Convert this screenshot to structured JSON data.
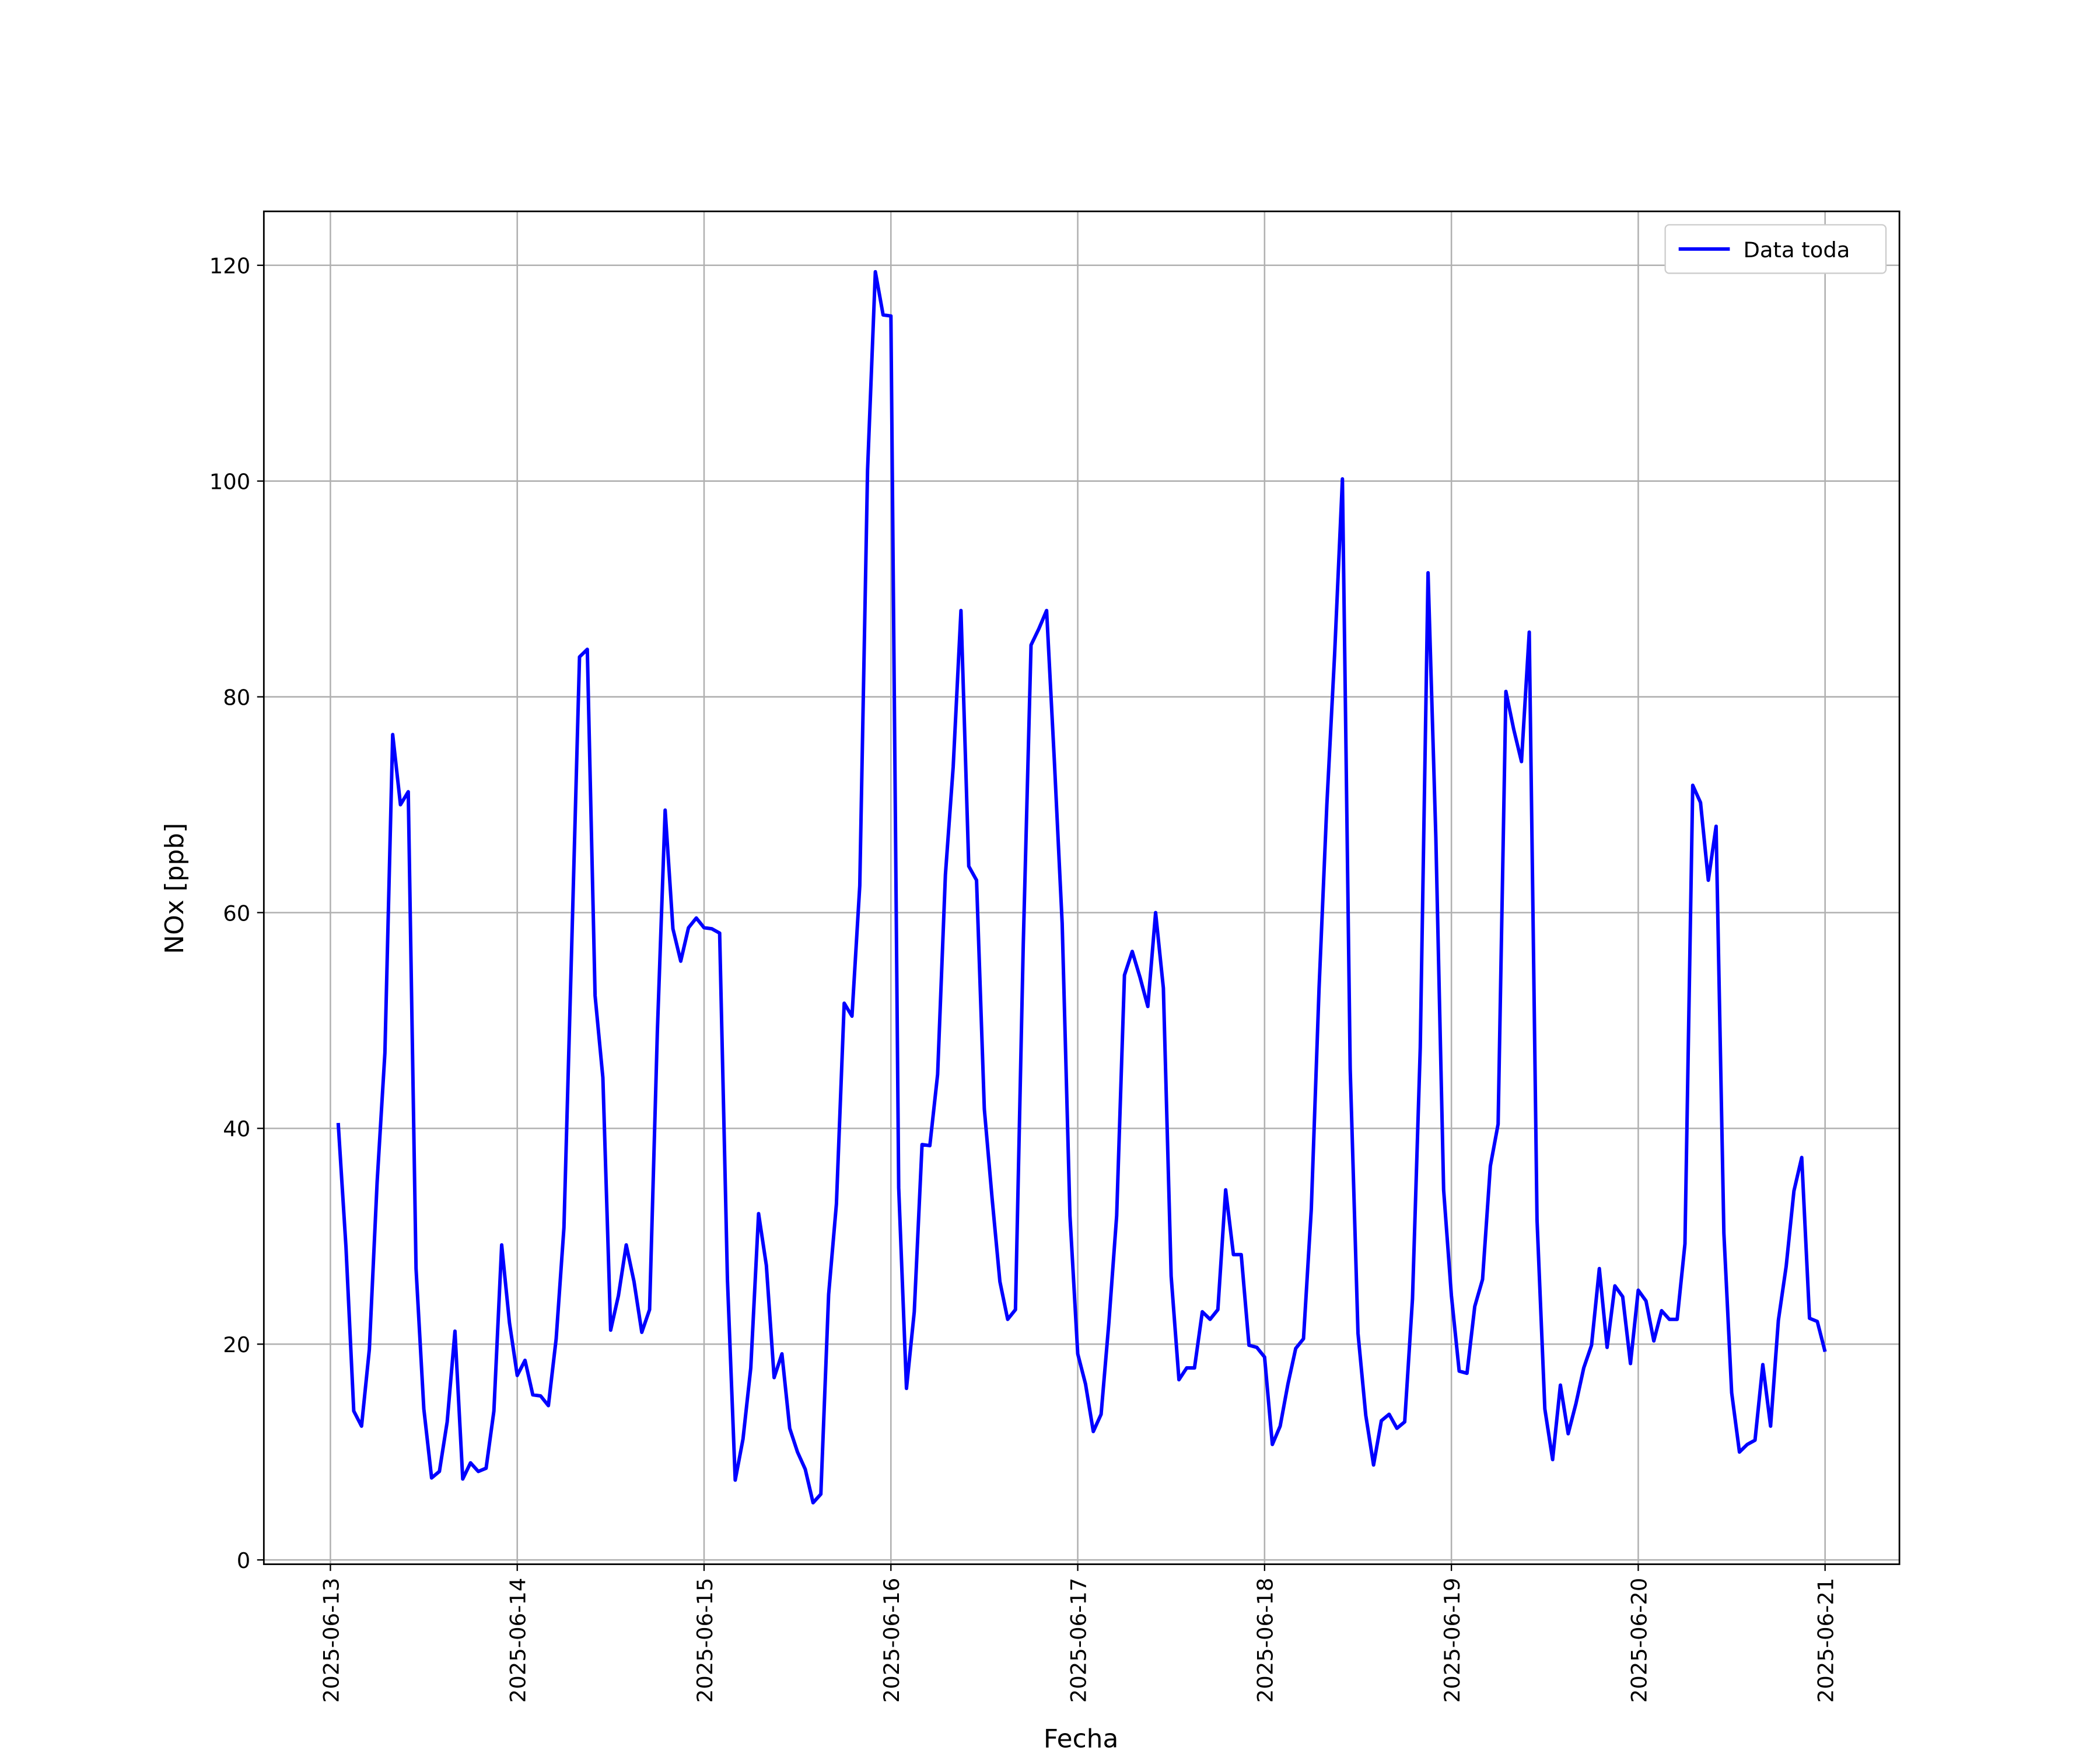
{
  "chart_data": {
    "type": "line",
    "xlabel": "Fecha",
    "ylabel": "NOx [ppb]",
    "x": [
      "2025-06-13 01:00",
      "2025-06-13 02:00",
      "2025-06-13 03:00",
      "2025-06-13 04:00",
      "2025-06-13 05:00",
      "2025-06-13 06:00",
      "2025-06-13 07:00",
      "2025-06-13 08:00",
      "2025-06-13 09:00",
      "2025-06-13 10:00",
      "2025-06-13 11:00",
      "2025-06-13 12:00",
      "2025-06-13 13:00",
      "2025-06-13 14:00",
      "2025-06-13 15:00",
      "2025-06-13 16:00",
      "2025-06-13 17:00",
      "2025-06-13 18:00",
      "2025-06-13 19:00",
      "2025-06-13 20:00",
      "2025-06-13 21:00",
      "2025-06-13 22:00",
      "2025-06-13 23:00",
      "2025-06-14 00:00",
      "2025-06-14 01:00",
      "2025-06-14 02:00",
      "2025-06-14 03:00",
      "2025-06-14 04:00",
      "2025-06-14 05:00",
      "2025-06-14 06:00",
      "2025-06-14 07:00",
      "2025-06-14 08:00",
      "2025-06-14 09:00",
      "2025-06-14 10:00",
      "2025-06-14 11:00",
      "2025-06-14 12:00",
      "2025-06-14 13:00",
      "2025-06-14 14:00",
      "2025-06-14 15:00",
      "2025-06-14 16:00",
      "2025-06-14 17:00",
      "2025-06-14 18:00",
      "2025-06-14 19:00",
      "2025-06-14 20:00",
      "2025-06-14 21:00",
      "2025-06-14 22:00",
      "2025-06-14 23:00",
      "2025-06-15 00:00",
      "2025-06-15 01:00",
      "2025-06-15 02:00",
      "2025-06-15 03:00",
      "2025-06-15 04:00",
      "2025-06-15 05:00",
      "2025-06-15 06:00",
      "2025-06-15 07:00",
      "2025-06-15 08:00",
      "2025-06-15 09:00",
      "2025-06-15 10:00",
      "2025-06-15 11:00",
      "2025-06-15 12:00",
      "2025-06-15 13:00",
      "2025-06-15 14:00",
      "2025-06-15 15:00",
      "2025-06-15 16:00",
      "2025-06-15 17:00",
      "2025-06-15 18:00",
      "2025-06-15 19:00",
      "2025-06-15 20:00",
      "2025-06-15 21:00",
      "2025-06-15 22:00",
      "2025-06-15 23:00",
      "2025-06-16 00:00",
      "2025-06-16 01:00",
      "2025-06-16 02:00",
      "2025-06-16 03:00",
      "2025-06-16 04:00",
      "2025-06-16 05:00",
      "2025-06-16 06:00",
      "2025-06-16 07:00",
      "2025-06-16 08:00",
      "2025-06-16 09:00",
      "2025-06-16 10:00",
      "2025-06-16 11:00",
      "2025-06-16 12:00",
      "2025-06-16 13:00",
      "2025-06-16 14:00",
      "2025-06-16 15:00",
      "2025-06-16 16:00",
      "2025-06-16 17:00",
      "2025-06-16 18:00",
      "2025-06-16 19:00",
      "2025-06-16 20:00",
      "2025-06-16 21:00",
      "2025-06-16 22:00",
      "2025-06-16 23:00",
      "2025-06-17 00:00",
      "2025-06-17 01:00",
      "2025-06-17 02:00",
      "2025-06-17 03:00",
      "2025-06-17 04:00",
      "2025-06-17 05:00",
      "2025-06-17 06:00",
      "2025-06-17 07:00",
      "2025-06-17 08:00",
      "2025-06-17 09:00",
      "2025-06-17 10:00",
      "2025-06-17 11:00",
      "2025-06-17 12:00",
      "2025-06-17 13:00",
      "2025-06-17 14:00",
      "2025-06-17 15:00",
      "2025-06-17 16:00",
      "2025-06-17 17:00",
      "2025-06-17 18:00",
      "2025-06-17 19:00",
      "2025-06-17 20:00",
      "2025-06-17 21:00",
      "2025-06-17 22:00",
      "2025-06-17 23:00",
      "2025-06-18 00:00",
      "2025-06-18 01:00",
      "2025-06-18 02:00",
      "2025-06-18 03:00",
      "2025-06-18 04:00",
      "2025-06-18 05:00",
      "2025-06-18 06:00",
      "2025-06-18 07:00",
      "2025-06-18 08:00",
      "2025-06-18 09:00",
      "2025-06-18 10:00",
      "2025-06-18 11:00",
      "2025-06-18 12:00",
      "2025-06-18 13:00",
      "2025-06-18 14:00",
      "2025-06-18 15:00",
      "2025-06-18 16:00",
      "2025-06-18 17:00",
      "2025-06-18 18:00",
      "2025-06-18 19:00",
      "2025-06-18 20:00",
      "2025-06-18 21:00",
      "2025-06-18 22:00",
      "2025-06-18 23:00",
      "2025-06-19 00:00",
      "2025-06-19 01:00",
      "2025-06-19 02:00",
      "2025-06-19 03:00",
      "2025-06-19 04:00",
      "2025-06-19 05:00",
      "2025-06-19 06:00",
      "2025-06-19 07:00",
      "2025-06-19 08:00",
      "2025-06-19 09:00",
      "2025-06-19 10:00",
      "2025-06-19 11:00",
      "2025-06-19 12:00",
      "2025-06-19 13:00",
      "2025-06-19 14:00",
      "2025-06-19 15:00",
      "2025-06-19 16:00",
      "2025-06-19 17:00",
      "2025-06-19 18:00",
      "2025-06-19 19:00",
      "2025-06-19 20:00",
      "2025-06-19 21:00",
      "2025-06-19 22:00",
      "2025-06-19 23:00",
      "2025-06-20 00:00",
      "2025-06-20 01:00",
      "2025-06-20 02:00",
      "2025-06-20 03:00",
      "2025-06-20 04:00",
      "2025-06-20 05:00",
      "2025-06-20 06:00",
      "2025-06-20 07:00",
      "2025-06-20 08:00",
      "2025-06-20 09:00",
      "2025-06-20 10:00",
      "2025-06-20 11:00",
      "2025-06-20 12:00",
      "2025-06-20 13:00",
      "2025-06-20 14:00",
      "2025-06-20 15:00",
      "2025-06-20 16:00",
      "2025-06-20 17:00",
      "2025-06-20 18:00",
      "2025-06-20 19:00",
      "2025-06-20 20:00",
      "2025-06-20 21:00",
      "2025-06-20 22:00",
      "2025-06-20 23:00",
      "2025-06-21 00:00"
    ],
    "series": [
      {
        "name": "Data toda",
        "color": "#0000ff",
        "values": [
          40.5,
          29,
          13.8,
          12.4,
          19.5,
          35,
          47,
          76.5,
          70,
          71.2,
          27,
          14,
          7.6,
          8.2,
          12.8,
          21.2,
          7.5,
          9,
          8.2,
          8.5,
          13.8,
          29.2,
          22,
          17.1,
          18.5,
          15.3,
          15.2,
          14.3,
          20.5,
          30.8,
          57,
          83.7,
          84.4,
          52.3,
          44.7,
          21.3,
          24.5,
          29.2,
          25.8,
          21.1,
          23.2,
          49,
          69.5,
          58.5,
          55.5,
          58.6,
          59.5,
          58.6,
          58.5,
          58.1,
          26,
          7.4,
          11.2,
          17.8,
          32.1,
          27.3,
          16.9,
          19.1,
          12.2,
          10,
          8.4,
          5.3,
          6.1,
          24.6,
          33,
          51.6,
          50.4,
          62.5,
          101,
          119.4,
          115.4,
          115.3,
          34.5,
          15.9,
          23,
          38.5,
          38.4,
          45,
          63.5,
          73.5,
          88,
          64.3,
          63,
          41.8,
          33.5,
          25.8,
          22.3,
          23.2,
          57,
          84.8,
          86.3,
          88,
          74,
          59,
          31.9,
          19.1,
          16.3,
          11.9,
          13.5,
          22,
          31.9,
          54.2,
          56.4,
          54,
          51.3,
          60,
          53,
          26.3,
          16.7,
          17.8,
          17.8,
          23,
          22.3,
          23.2,
          34.3,
          28.3,
          28.3,
          19.9,
          19.7,
          18.8,
          10.7,
          12.4,
          16.3,
          19.6,
          20.5,
          32.5,
          53,
          70,
          84,
          100.2,
          45.5,
          21,
          13.4,
          8.8,
          12.9,
          13.5,
          12.2,
          12.8,
          24.2,
          47.5,
          91.5,
          67,
          34.3,
          24.5,
          17.5,
          17.3,
          23.5,
          26,
          36.5,
          40.4,
          80.5,
          77,
          74,
          86,
          31.5,
          14,
          9.3,
          16.2,
          11.7,
          14.5,
          17.8,
          19.9,
          27,
          19.7,
          25.4,
          24.4,
          18.2,
          25,
          24,
          20.3,
          23.1,
          22.3,
          22.3,
          29.3,
          71.8,
          70.2,
          63,
          68,
          30.3,
          15.5,
          10,
          10.7,
          11.1,
          18.1,
          12.4,
          22.2,
          27.2,
          34.2,
          37.3,
          22.4,
          22.1,
          19.3
        ]
      }
    ],
    "xlim": [
      "2025-06-12 15:27",
      "2025-06-21 09:33"
    ],
    "xticks": [
      {
        "value": "2025-06-13 00:00",
        "label": "2025-06-13"
      },
      {
        "value": "2025-06-14 00:00",
        "label": "2025-06-14"
      },
      {
        "value": "2025-06-15 00:00",
        "label": "2025-06-15"
      },
      {
        "value": "2025-06-16 00:00",
        "label": "2025-06-16"
      },
      {
        "value": "2025-06-17 00:00",
        "label": "2025-06-17"
      },
      {
        "value": "2025-06-18 00:00",
        "label": "2025-06-18"
      },
      {
        "value": "2025-06-19 00:00",
        "label": "2025-06-19"
      },
      {
        "value": "2025-06-20 00:00",
        "label": "2025-06-20"
      },
      {
        "value": "2025-06-21 00:00",
        "label": "2025-06-21"
      }
    ],
    "ylim": [
      -0.4,
      125
    ],
    "yticks": [
      0,
      20,
      40,
      60,
      80,
      100,
      120
    ],
    "grid": true,
    "legend": "upper right"
  }
}
